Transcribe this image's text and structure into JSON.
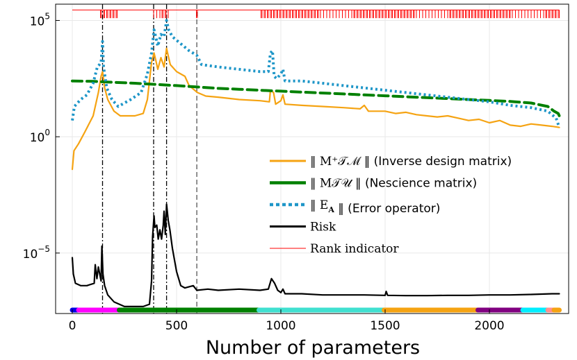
{
  "chart_data": {
    "type": "line",
    "xlabel": "Number of parameters",
    "ylabel": "",
    "yscale": "log10",
    "xlim": [
      -80,
      2380
    ],
    "ylim_log10": [
      -7.6,
      5.7
    ],
    "grid": true,
    "legend_position": "center-right",
    "xticks": [
      {
        "value": 0,
        "label": "0"
      },
      {
        "value": 500,
        "label": "500"
      },
      {
        "value": 1000,
        "label": "1000"
      },
      {
        "value": 1500,
        "label": "1500"
      },
      {
        "value": 2000,
        "label": "2000"
      }
    ],
    "yticks": [
      {
        "log10": 5,
        "base": "10",
        "exp": "5"
      },
      {
        "log10": 0,
        "base": "10",
        "exp": "0"
      },
      {
        "log10": -5,
        "base": "10",
        "exp": "−5"
      }
    ],
    "vlines": [
      {
        "x": 145,
        "style": "dash-dot"
      },
      {
        "x": 390,
        "style": "dash-dot"
      },
      {
        "x": 452,
        "style": "dash-dot"
      },
      {
        "x": 597,
        "style": "dashed"
      }
    ],
    "series": [
      {
        "key": "inverse",
        "name": "‖ M⁺_TM ‖",
        "legend_symbol": "‖ M⁺𝒯ℳ ‖",
        "legend_desc": " (Inverse design matrix)",
        "color": "#f5a312",
        "style": "solid",
        "points": [
          [
            0,
            -1.4
          ],
          [
            8,
            -0.6
          ],
          [
            30,
            -0.3
          ],
          [
            60,
            0.2
          ],
          [
            100,
            0.9
          ],
          [
            125,
            1.9
          ],
          [
            138,
            2.6
          ],
          [
            145,
            2.8
          ],
          [
            155,
            2.1
          ],
          [
            170,
            1.6
          ],
          [
            200,
            1.1
          ],
          [
            230,
            0.9
          ],
          [
            300,
            0.9
          ],
          [
            340,
            1.0
          ],
          [
            360,
            1.6
          ],
          [
            380,
            3.2
          ],
          [
            392,
            3.6
          ],
          [
            400,
            3.3
          ],
          [
            410,
            2.9
          ],
          [
            425,
            3.4
          ],
          [
            440,
            3.0
          ],
          [
            452,
            3.8
          ],
          [
            462,
            3.4
          ],
          [
            470,
            3.1
          ],
          [
            480,
            3.0
          ],
          [
            500,
            2.8
          ],
          [
            540,
            2.6
          ],
          [
            560,
            2.2
          ],
          [
            600,
            1.9
          ],
          [
            640,
            1.75
          ],
          [
            700,
            1.7
          ],
          [
            800,
            1.6
          ],
          [
            900,
            1.55
          ],
          [
            945,
            1.5
          ],
          [
            950,
            2.0
          ],
          [
            965,
            1.9
          ],
          [
            975,
            1.4
          ],
          [
            1000,
            1.55
          ],
          [
            1010,
            1.8
          ],
          [
            1020,
            1.4
          ],
          [
            1100,
            1.35
          ],
          [
            1200,
            1.3
          ],
          [
            1300,
            1.25
          ],
          [
            1380,
            1.2
          ],
          [
            1400,
            1.35
          ],
          [
            1420,
            1.1
          ],
          [
            1500,
            1.1
          ],
          [
            1550,
            1.0
          ],
          [
            1600,
            1.05
          ],
          [
            1650,
            0.95
          ],
          [
            1700,
            0.9
          ],
          [
            1750,
            0.85
          ],
          [
            1800,
            0.9
          ],
          [
            1850,
            0.8
          ],
          [
            1900,
            0.7
          ],
          [
            1950,
            0.75
          ],
          [
            2000,
            0.6
          ],
          [
            2050,
            0.7
          ],
          [
            2100,
            0.5
          ],
          [
            2150,
            0.45
          ],
          [
            2200,
            0.55
          ],
          [
            2250,
            0.5
          ],
          [
            2300,
            0.45
          ],
          [
            2335,
            0.4
          ]
        ]
      },
      {
        "key": "nescience",
        "name": "‖ M_TU ‖",
        "legend_symbol": "‖ M𝒯𝒰 ‖",
        "legend_desc": " (Nescience matrix)",
        "color": "#008000",
        "style": "dashed-thick",
        "points": [
          [
            0,
            2.4
          ],
          [
            100,
            2.38
          ],
          [
            200,
            2.34
          ],
          [
            300,
            2.3
          ],
          [
            400,
            2.25
          ],
          [
            500,
            2.2
          ],
          [
            600,
            2.14
          ],
          [
            700,
            2.08
          ],
          [
            800,
            2.04
          ],
          [
            900,
            2.0
          ],
          [
            1000,
            1.96
          ],
          [
            1100,
            1.92
          ],
          [
            1200,
            1.88
          ],
          [
            1300,
            1.84
          ],
          [
            1400,
            1.8
          ],
          [
            1500,
            1.76
          ],
          [
            1600,
            1.72
          ],
          [
            1700,
            1.68
          ],
          [
            1800,
            1.64
          ],
          [
            1900,
            1.6
          ],
          [
            2000,
            1.56
          ],
          [
            2100,
            1.52
          ],
          [
            2200,
            1.45
          ],
          [
            2280,
            1.3
          ],
          [
            2310,
            1.1
          ],
          [
            2330,
            1.0
          ],
          [
            2335,
            0.9
          ]
        ]
      },
      {
        "key": "error",
        "name": "‖ E_A ‖",
        "legend_symbol": "‖ E",
        "legend_sub": "A",
        "legend_desc": " ‖  (Error operator)",
        "color": "#1e96c8",
        "style": "dotted-thick",
        "points": [
          [
            0,
            0.7
          ],
          [
            10,
            1.3
          ],
          [
            40,
            1.6
          ],
          [
            70,
            1.8
          ],
          [
            100,
            2.3
          ],
          [
            120,
            3.0
          ],
          [
            130,
            3.1
          ],
          [
            138,
            3.2
          ],
          [
            145,
            4.1
          ],
          [
            150,
            3.0
          ],
          [
            165,
            2.1
          ],
          [
            190,
            1.6
          ],
          [
            220,
            1.3
          ],
          [
            280,
            1.6
          ],
          [
            330,
            1.9
          ],
          [
            360,
            2.7
          ],
          [
            380,
            3.6
          ],
          [
            392,
            4.6
          ],
          [
            400,
            4.3
          ],
          [
            410,
            3.9
          ],
          [
            425,
            4.4
          ],
          [
            440,
            4.3
          ],
          [
            452,
            5.0
          ],
          [
            462,
            4.6
          ],
          [
            480,
            4.3
          ],
          [
            520,
            4.0
          ],
          [
            560,
            3.7
          ],
          [
            597,
            3.5
          ],
          [
            620,
            3.1
          ],
          [
            700,
            3.0
          ],
          [
            800,
            2.9
          ],
          [
            900,
            2.8
          ],
          [
            940,
            2.8
          ],
          [
            950,
            3.6
          ],
          [
            960,
            3.7
          ],
          [
            968,
            2.6
          ],
          [
            980,
            2.5
          ],
          [
            1000,
            2.7
          ],
          [
            1010,
            2.9
          ],
          [
            1020,
            2.4
          ],
          [
            1100,
            2.4
          ],
          [
            1200,
            2.3
          ],
          [
            1300,
            2.2
          ],
          [
            1400,
            2.1
          ],
          [
            1500,
            2.0
          ],
          [
            1600,
            1.9
          ],
          [
            1700,
            1.8
          ],
          [
            1800,
            1.7
          ],
          [
            1900,
            1.6
          ],
          [
            2000,
            1.5
          ],
          [
            2100,
            1.35
          ],
          [
            2200,
            1.25
          ],
          [
            2280,
            1.1
          ],
          [
            2320,
            0.8
          ],
          [
            2335,
            0.4
          ]
        ]
      },
      {
        "key": "risk",
        "name": "Risk",
        "legend_symbol": "Risk",
        "legend_desc": "",
        "color": "#000000",
        "style": "solid",
        "points": [
          [
            0,
            -5.2
          ],
          [
            5,
            -5.9
          ],
          [
            15,
            -6.3
          ],
          [
            40,
            -6.4
          ],
          [
            70,
            -6.4
          ],
          [
            105,
            -6.3
          ],
          [
            110,
            -5.5
          ],
          [
            118,
            -6.1
          ],
          [
            125,
            -5.6
          ],
          [
            138,
            -6.2
          ],
          [
            142,
            -4.7
          ],
          [
            147,
            -5.9
          ],
          [
            155,
            -6.4
          ],
          [
            170,
            -6.8
          ],
          [
            200,
            -7.1
          ],
          [
            250,
            -7.3
          ],
          [
            300,
            -7.3
          ],
          [
            340,
            -7.3
          ],
          [
            370,
            -7.2
          ],
          [
            380,
            -6.2
          ],
          [
            385,
            -4.3
          ],
          [
            392,
            -3.4
          ],
          [
            396,
            -3.9
          ],
          [
            405,
            -3.8
          ],
          [
            412,
            -4.4
          ],
          [
            420,
            -4.0
          ],
          [
            428,
            -4.4
          ],
          [
            436,
            -3.8
          ],
          [
            440,
            -3.2
          ],
          [
            446,
            -4.2
          ],
          [
            452,
            -2.9
          ],
          [
            460,
            -3.6
          ],
          [
            468,
            -4.0
          ],
          [
            480,
            -4.8
          ],
          [
            500,
            -5.8
          ],
          [
            520,
            -6.4
          ],
          [
            540,
            -6.5
          ],
          [
            580,
            -6.4
          ],
          [
            597,
            -6.6
          ],
          [
            650,
            -6.55
          ],
          [
            700,
            -6.6
          ],
          [
            800,
            -6.55
          ],
          [
            900,
            -6.6
          ],
          [
            940,
            -6.55
          ],
          [
            955,
            -6.1
          ],
          [
            970,
            -6.3
          ],
          [
            985,
            -6.6
          ],
          [
            1000,
            -6.7
          ],
          [
            1010,
            -6.55
          ],
          [
            1020,
            -6.75
          ],
          [
            1100,
            -6.75
          ],
          [
            1200,
            -6.8
          ],
          [
            1300,
            -6.8
          ],
          [
            1400,
            -6.8
          ],
          [
            1500,
            -6.82
          ],
          [
            1505,
            -6.65
          ],
          [
            1512,
            -6.82
          ],
          [
            1600,
            -6.83
          ],
          [
            1700,
            -6.83
          ],
          [
            1800,
            -6.82
          ],
          [
            1900,
            -6.82
          ],
          [
            2000,
            -6.8
          ],
          [
            2100,
            -6.8
          ],
          [
            2200,
            -6.78
          ],
          [
            2300,
            -6.75
          ],
          [
            2335,
            -6.75
          ]
        ]
      },
      {
        "key": "rank",
        "name": "Rank indicator",
        "legend_symbol": "Rank indicator",
        "legend_desc": "",
        "color": "#ff0000",
        "style": "thin",
        "baseline_log10": 5.45,
        "spike_top_log10": 5.1,
        "spike_ranges": [
          [
            130,
            215
          ],
          [
            390,
            460
          ],
          [
            595,
            600
          ],
          [
            900,
            2335
          ]
        ]
      }
    ],
    "segment_bar": {
      "y_log10": -7.45,
      "segments": [
        {
          "from": 0,
          "to": 30,
          "color": "#0000e6"
        },
        {
          "from": 30,
          "to": 225,
          "color": "#ff00ff"
        },
        {
          "from": 225,
          "to": 895,
          "color": "#008000"
        },
        {
          "from": 895,
          "to": 1495,
          "color": "#40e0d0"
        },
        {
          "from": 1495,
          "to": 1945,
          "color": "#f5a312"
        },
        {
          "from": 1945,
          "to": 2160,
          "color": "#800080"
        },
        {
          "from": 2160,
          "to": 2280,
          "color": "#00eeff"
        },
        {
          "from": 2280,
          "to": 2310,
          "color": "#ff9090"
        },
        {
          "from": 2310,
          "to": 2335,
          "color": "#f5a312"
        }
      ]
    }
  }
}
